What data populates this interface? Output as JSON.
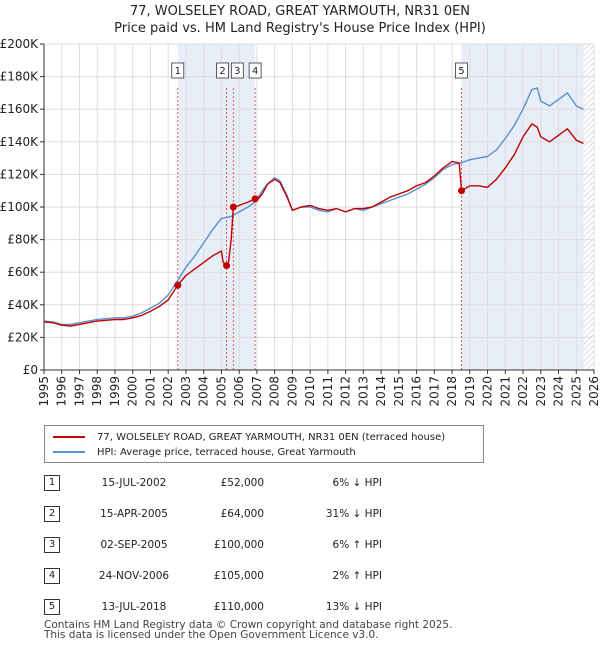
{
  "title_line1": "77, WOLSELEY ROAD, GREAT YARMOUTH, NR31 0EN",
  "title_line2": "Price paid vs. HM Land Registry's House Price Index (HPI)",
  "colors": {
    "hpi_line": "#5b8fd0",
    "price_line": "#c00000",
    "marker_line": "#dd3333",
    "shade": "#e8eef8",
    "grid": "#dddddd",
    "axis": "#333333"
  },
  "chart_data": {
    "type": "line",
    "title": "Price paid vs. HM Land Registry's House Price Index (HPI)",
    "xlim": [
      1995,
      2026
    ],
    "ylim": [
      0,
      200000
    ],
    "y_ticks": [
      {
        "value": 0,
        "label": "£0"
      },
      {
        "value": 20000,
        "label": "£20K"
      },
      {
        "value": 40000,
        "label": "£40K"
      },
      {
        "value": 60000,
        "label": "£60K"
      },
      {
        "value": 80000,
        "label": "£80K"
      },
      {
        "value": 100000,
        "label": "£100K"
      },
      {
        "value": 120000,
        "label": "£120K"
      },
      {
        "value": 140000,
        "label": "£140K"
      },
      {
        "value": 160000,
        "label": "£160K"
      },
      {
        "value": 180000,
        "label": "£180K"
      },
      {
        "value": 200000,
        "label": "£200K"
      }
    ],
    "x_ticks": [
      "1995",
      "1996",
      "1997",
      "1998",
      "1999",
      "2000",
      "2001",
      "2002",
      "2003",
      "2004",
      "2005",
      "2006",
      "2007",
      "2008",
      "2009",
      "2010",
      "2011",
      "2012",
      "2013",
      "2014",
      "2015",
      "2016",
      "2017",
      "2018",
      "2019",
      "2020",
      "2021",
      "2022",
      "2023",
      "2024",
      "2025",
      "2026"
    ],
    "shaded_regions": [
      [
        2002.54,
        2006.9
      ],
      [
        2018.53,
        2025.42
      ]
    ],
    "hatched_from": 2025.42,
    "grid": true,
    "series": [
      {
        "name": "77, WOLSELEY ROAD, GREAT YARMOUTH, NR31 0EN (terraced house)",
        "color": "#c00000",
        "points": [
          [
            1995.0,
            29500
          ],
          [
            1995.5,
            29000
          ],
          [
            1996.0,
            27500
          ],
          [
            1996.5,
            27000
          ],
          [
            1997.0,
            28000
          ],
          [
            1997.5,
            29000
          ],
          [
            1998.0,
            30000
          ],
          [
            1998.5,
            30500
          ],
          [
            1999.0,
            31000
          ],
          [
            1999.5,
            31000
          ],
          [
            2000.0,
            32000
          ],
          [
            2000.5,
            33500
          ],
          [
            2001.0,
            36000
          ],
          [
            2001.5,
            39000
          ],
          [
            2002.0,
            43000
          ],
          [
            2002.54,
            52000
          ],
          [
            2003.0,
            58000
          ],
          [
            2003.5,
            62000
          ],
          [
            2004.0,
            66000
          ],
          [
            2004.5,
            70000
          ],
          [
            2005.0,
            73000
          ],
          [
            2005.1,
            66000
          ],
          [
            2005.29,
            64000
          ],
          [
            2005.4,
            66000
          ],
          [
            2005.55,
            80000
          ],
          [
            2005.67,
            100000
          ],
          [
            2006.0,
            101000
          ],
          [
            2006.5,
            103000
          ],
          [
            2006.9,
            105000
          ],
          [
            2007.0,
            104000
          ],
          [
            2007.3,
            108000
          ],
          [
            2007.6,
            114000
          ],
          [
            2008.0,
            117000
          ],
          [
            2008.3,
            115000
          ],
          [
            2008.7,
            106000
          ],
          [
            2009.0,
            98000
          ],
          [
            2009.5,
            100000
          ],
          [
            2010.0,
            101000
          ],
          [
            2010.5,
            99000
          ],
          [
            2011.0,
            98000
          ],
          [
            2011.5,
            99000
          ],
          [
            2012.0,
            97000
          ],
          [
            2012.5,
            99000
          ],
          [
            2013.0,
            99000
          ],
          [
            2013.5,
            100000
          ],
          [
            2014.0,
            103000
          ],
          [
            2014.5,
            106000
          ],
          [
            2015.0,
            108000
          ],
          [
            2015.5,
            110000
          ],
          [
            2016.0,
            113000
          ],
          [
            2016.5,
            115000
          ],
          [
            2017.0,
            119000
          ],
          [
            2017.5,
            124000
          ],
          [
            2018.0,
            128000
          ],
          [
            2018.4,
            127000
          ],
          [
            2018.53,
            110000
          ],
          [
            2019.0,
            113000
          ],
          [
            2019.5,
            113000
          ],
          [
            2020.0,
            112000
          ],
          [
            2020.5,
            117000
          ],
          [
            2021.0,
            124000
          ],
          [
            2021.5,
            132000
          ],
          [
            2022.0,
            143000
          ],
          [
            2022.5,
            151000
          ],
          [
            2022.8,
            149000
          ],
          [
            2023.0,
            143000
          ],
          [
            2023.5,
            140000
          ],
          [
            2024.0,
            144000
          ],
          [
            2024.5,
            148000
          ],
          [
            2025.0,
            141000
          ],
          [
            2025.4,
            139000
          ]
        ]
      },
      {
        "name": "HPI: Average price, terraced house, Great Yarmouth",
        "color": "#5b8fd0",
        "points": [
          [
            1995.0,
            30000
          ],
          [
            1995.5,
            29500
          ],
          [
            1996.0,
            28000
          ],
          [
            1996.5,
            28000
          ],
          [
            1997.0,
            29000
          ],
          [
            1997.5,
            30000
          ],
          [
            1998.0,
            31000
          ],
          [
            1998.5,
            31500
          ],
          [
            1999.0,
            32000
          ],
          [
            1999.5,
            32000
          ],
          [
            2000.0,
            33000
          ],
          [
            2000.5,
            35000
          ],
          [
            2001.0,
            38000
          ],
          [
            2001.5,
            41000
          ],
          [
            2002.0,
            46000
          ],
          [
            2002.54,
            55000
          ],
          [
            2003.0,
            63000
          ],
          [
            2003.5,
            70000
          ],
          [
            2004.0,
            78000
          ],
          [
            2004.5,
            86000
          ],
          [
            2005.0,
            93000
          ],
          [
            2005.5,
            94000
          ],
          [
            2006.0,
            97000
          ],
          [
            2006.5,
            100000
          ],
          [
            2006.9,
            103000
          ],
          [
            2007.0,
            105000
          ],
          [
            2007.5,
            113000
          ],
          [
            2008.0,
            118000
          ],
          [
            2008.3,
            116000
          ],
          [
            2008.7,
            107000
          ],
          [
            2009.0,
            98000
          ],
          [
            2009.5,
            100000
          ],
          [
            2010.0,
            100000
          ],
          [
            2010.5,
            98000
          ],
          [
            2011.0,
            97000
          ],
          [
            2011.5,
            99000
          ],
          [
            2012.0,
            97000
          ],
          [
            2012.5,
            99000
          ],
          [
            2013.0,
            98000
          ],
          [
            2013.5,
            100000
          ],
          [
            2014.0,
            102000
          ],
          [
            2014.5,
            104000
          ],
          [
            2015.0,
            106000
          ],
          [
            2015.5,
            108000
          ],
          [
            2016.0,
            111000
          ],
          [
            2016.5,
            114000
          ],
          [
            2017.0,
            118000
          ],
          [
            2017.5,
            123000
          ],
          [
            2018.0,
            126000
          ],
          [
            2018.5,
            127000
          ],
          [
            2019.0,
            129000
          ],
          [
            2019.5,
            130000
          ],
          [
            2020.0,
            131000
          ],
          [
            2020.5,
            135000
          ],
          [
            2021.0,
            142000
          ],
          [
            2021.5,
            150000
          ],
          [
            2022.0,
            160000
          ],
          [
            2022.5,
            172000
          ],
          [
            2022.8,
            173000
          ],
          [
            2023.0,
            165000
          ],
          [
            2023.5,
            162000
          ],
          [
            2024.0,
            166000
          ],
          [
            2024.5,
            170000
          ],
          [
            2025.0,
            162000
          ],
          [
            2025.4,
            160000
          ]
        ]
      }
    ],
    "transactions": [
      {
        "num": "1",
        "x": 2002.54,
        "price": 52000
      },
      {
        "num": "2",
        "x": 2005.29,
        "price": 64000
      },
      {
        "num": "3",
        "x": 2005.67,
        "price": 100000
      },
      {
        "num": "4",
        "x": 2006.9,
        "price": 105000
      },
      {
        "num": "5",
        "x": 2018.53,
        "price": 110000
      }
    ]
  },
  "legend": {
    "price_label": "77, WOLSELEY ROAD, GREAT YARMOUTH, NR31 0EN (terraced house)",
    "hpi_label": "HPI: Average price, terraced house, Great Yarmouth"
  },
  "table": [
    {
      "num": "1",
      "date": "15-JUL-2002",
      "price": "£52,000",
      "hpi": "6% ↓ HPI"
    },
    {
      "num": "2",
      "date": "15-APR-2005",
      "price": "£64,000",
      "hpi": "31% ↓ HPI"
    },
    {
      "num": "3",
      "date": "02-SEP-2005",
      "price": "£100,000",
      "hpi": "6% ↑ HPI"
    },
    {
      "num": "4",
      "date": "24-NOV-2006",
      "price": "£105,000",
      "hpi": "2% ↑ HPI"
    },
    {
      "num": "5",
      "date": "13-JUL-2018",
      "price": "£110,000",
      "hpi": "13% ↓ HPI"
    }
  ],
  "footer_line1": "Contains HM Land Registry data © Crown copyright and database right 2025.",
  "footer_line2": "This data is licensed under the Open Government Licence v3.0."
}
